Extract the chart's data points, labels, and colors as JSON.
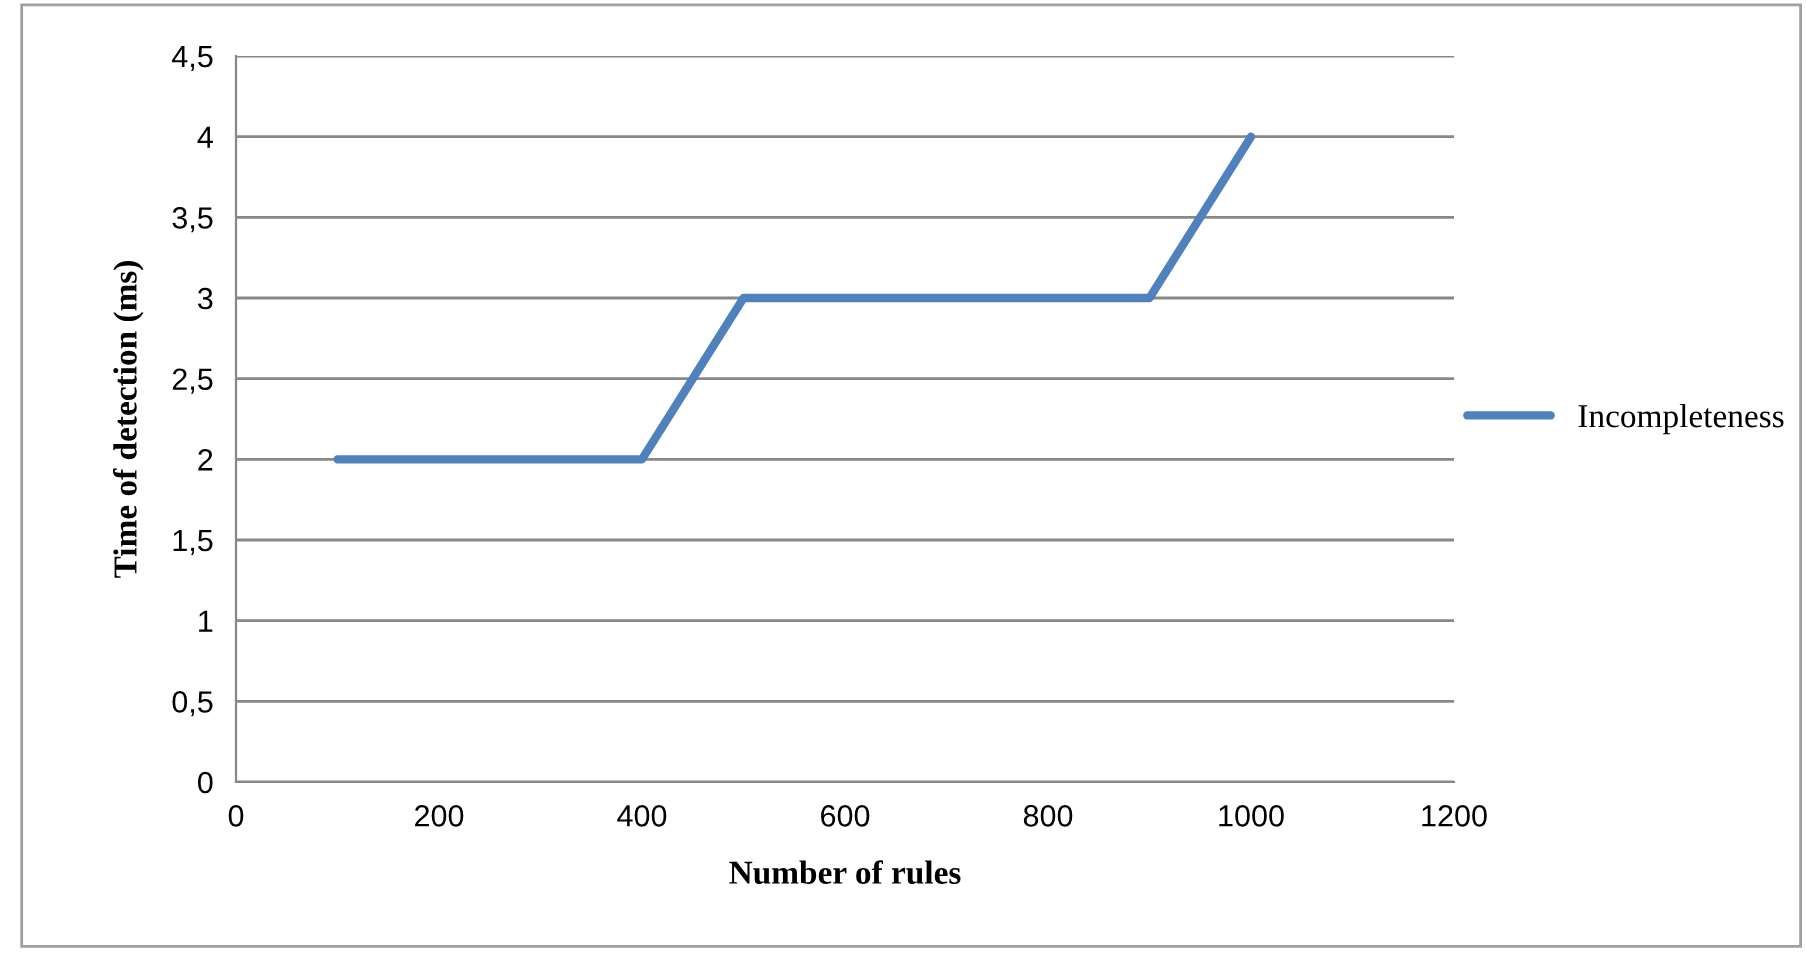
{
  "chart_data": {
    "type": "line",
    "xlabel": "Number of rules",
    "ylabel": "Time of detection (ms)",
    "x": [
      100,
      200,
      300,
      400,
      500,
      600,
      700,
      800,
      900,
      1000
    ],
    "series": [
      {
        "name": "Incompleteness",
        "color": "#4f81bd",
        "values": [
          2,
          2,
          2,
          2,
          3,
          3,
          3,
          3,
          3,
          4
        ]
      }
    ],
    "xlim": [
      0,
      1200
    ],
    "xticks": [
      0,
      200,
      400,
      600,
      800,
      1000,
      1200
    ],
    "ylim": [
      0,
      4.5
    ],
    "yticks": [
      0,
      {
        "value": 0.5,
        "label": "0,5"
      },
      1,
      {
        "value": 1.5,
        "label": "1,5"
      },
      2,
      {
        "value": 2.5,
        "label": "2,5"
      },
      3,
      {
        "value": 3.5,
        "label": "3,5"
      },
      4,
      {
        "value": 4.5,
        "label": "4,5"
      }
    ],
    "grid": "y",
    "legend": "right",
    "marker": "none",
    "line_style": "solid"
  }
}
